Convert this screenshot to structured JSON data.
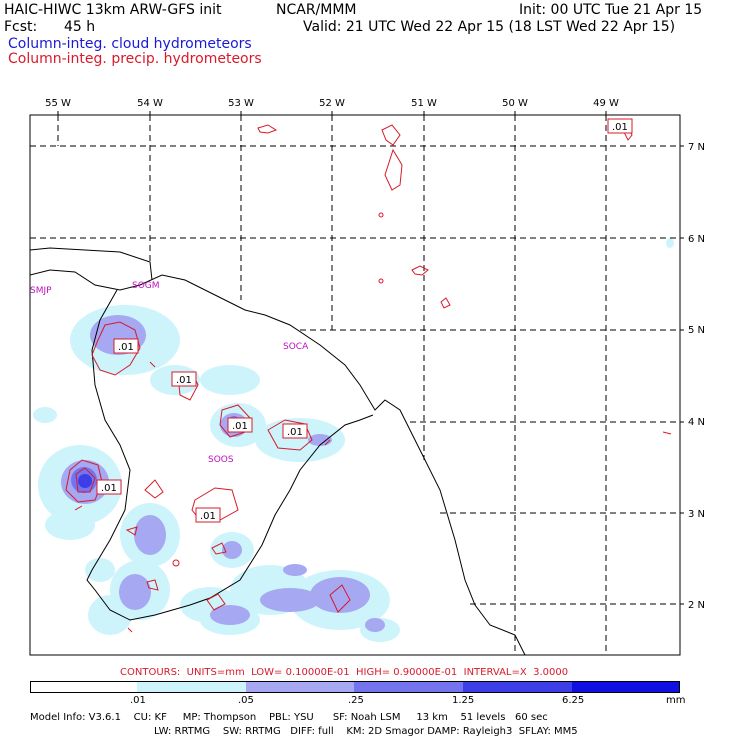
{
  "header": {
    "title_left": "HAIC-HIWC 13km ARW-GFS init",
    "title_center": "NCAR/MMM",
    "init": "Init: 00 UTC Tue 21 Apr 15",
    "fcst_label": "Fcst:",
    "fcst_value": "45 h",
    "valid": "Valid: 21 UTC Wed 22 Apr 15 (18 LST Wed 22 Apr 15)",
    "legend_cloud": "Column-integ. cloud hydrometeors",
    "legend_precip": "Column-integ. precip. hydrometeors"
  },
  "map": {
    "lon_labels": [
      "55 W",
      "54 W",
      "53 W",
      "52 W",
      "51 W",
      "50 W",
      "49 W"
    ],
    "lat_labels": [
      "7 N",
      "6 N",
      "5 N",
      "4 N",
      "3 N",
      "2 N"
    ],
    "station_labels": [
      "SMJP",
      "SOGM",
      "SOCA",
      "SOOS"
    ],
    "contour_label": ".01"
  },
  "contours_line": "CONTOURS:  UNITS=mm  LOW= 0.10000E-01  HIGH= 0.90000E-01  INTERVAL=X  3.0000",
  "colorbar": {
    "colors": [
      "#ffffff",
      "#cdf4fb",
      "#a6a8f2",
      "#7474ee",
      "#3e3ee6",
      "#1010e0"
    ],
    "tick_labels": [
      ".01",
      ".05",
      ".25",
      "1.25",
      "6.25"
    ],
    "unit": "mm"
  },
  "footer": {
    "row1": "Model Info: V3.6.1    CU: KF     MP: Thompson    PBL: YSU      SF: Noah LSM     13 km    51 levels   60 sec",
    "row2": "LW: RRTMG    SW: RRTMG   DIFF: full    KM: 2D Smagor DAMP: Rayleigh3  SFLAY: MM5"
  }
}
